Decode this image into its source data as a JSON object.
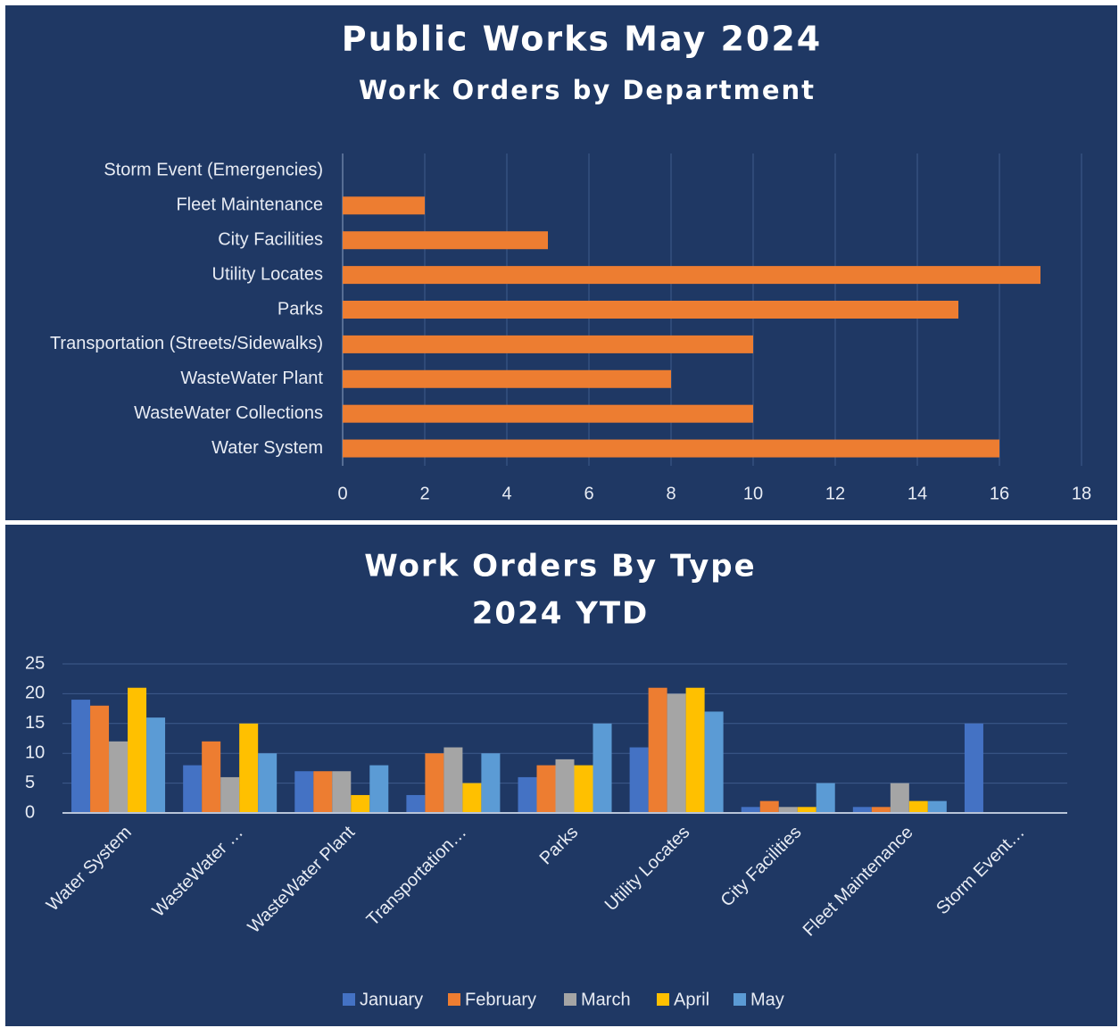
{
  "chart_data": [
    {
      "type": "bar",
      "orientation": "horizontal",
      "title": "Public Works May 2024",
      "subtitle": "Work Orders by Department",
      "categories": [
        "Storm Event (Emergencies)",
        "Fleet  Maintenance",
        "City Facilities",
        "Utility Locates",
        "Parks",
        "Transportation (Streets/Sidewalks)",
        "WasteWater Plant",
        "WasteWater Collections",
        "Water System"
      ],
      "values": [
        0,
        2,
        5,
        17,
        15,
        10,
        8,
        10,
        16
      ],
      "color": "#ed7d31",
      "xlim": [
        0,
        18
      ],
      "xticks": [
        0,
        2,
        4,
        6,
        8,
        10,
        12,
        14,
        16,
        18
      ],
      "grid": true
    },
    {
      "type": "grouped_bar",
      "title": "Work Orders By Type",
      "subtitle": "2024 YTD",
      "categories": [
        "Water System",
        "WasteWater …",
        "WasteWater Plant",
        "Transportation…",
        "Parks",
        "Utility Locates",
        "City Facilities",
        "Fleet  Maintenance",
        "Storm Event…"
      ],
      "series": [
        {
          "name": "January",
          "color": "#4472c4",
          "values": [
            19,
            8,
            7,
            3,
            6,
            11,
            1,
            1,
            15
          ]
        },
        {
          "name": "February",
          "color": "#ed7d31",
          "values": [
            18,
            12,
            7,
            10,
            8,
            21,
            2,
            1,
            0
          ]
        },
        {
          "name": "March",
          "color": "#a5a5a5",
          "values": [
            12,
            6,
            7,
            11,
            9,
            20,
            1,
            5,
            0
          ]
        },
        {
          "name": "April",
          "color": "#ffc000",
          "values": [
            21,
            15,
            3,
            5,
            8,
            21,
            1,
            2,
            0
          ]
        },
        {
          "name": "May",
          "color": "#5b9bd5",
          "values": [
            16,
            10,
            8,
            10,
            15,
            17,
            5,
            2,
            0
          ]
        }
      ],
      "ylim": [
        0,
        25
      ],
      "yticks": [
        0,
        5,
        10,
        15,
        20,
        25
      ],
      "grid": true,
      "legend": "bottom"
    }
  ]
}
